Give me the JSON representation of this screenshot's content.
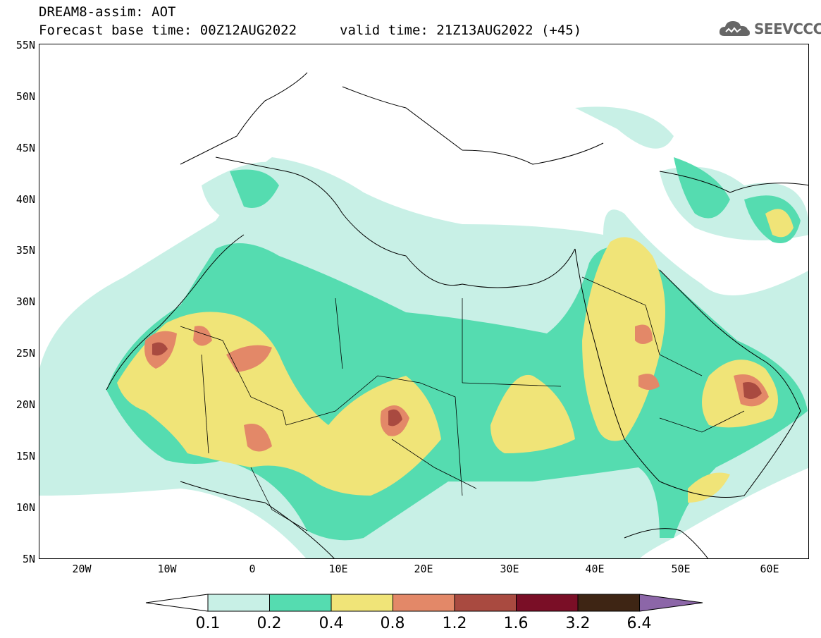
{
  "header": {
    "title": "DREAM8-assim: AOT",
    "base_time": "Forecast base time: 00Z12AUG2022",
    "valid_time": "valid time: 21Z13AUG2022 (+45)",
    "logo_text": "SEEVCCC"
  },
  "map": {
    "variable": "AOT",
    "projection": "lat-lon",
    "lon_range": [
      -25,
      65
    ],
    "lat_range": [
      5,
      55
    ],
    "lat_labels": [
      "55N",
      "50N",
      "45N",
      "40N",
      "35N",
      "30N",
      "25N",
      "20N",
      "15N",
      "10N",
      "5N"
    ],
    "lon_labels": [
      "20W",
      "10W",
      "0",
      "10E",
      "20E",
      "30E",
      "40E",
      "50E",
      "60E"
    ]
  },
  "colorbar": {
    "labels": [
      "0.1",
      "0.2",
      "0.4",
      "0.8",
      "1.2",
      "1.6",
      "3.2",
      "6.4"
    ],
    "colors": [
      "#ffffff",
      "#c8f0e6",
      "#55dcb0",
      "#f0e478",
      "#e38868",
      "#a94a40",
      "#7a0e26",
      "#3e2514",
      "#8c66a8"
    ]
  }
}
